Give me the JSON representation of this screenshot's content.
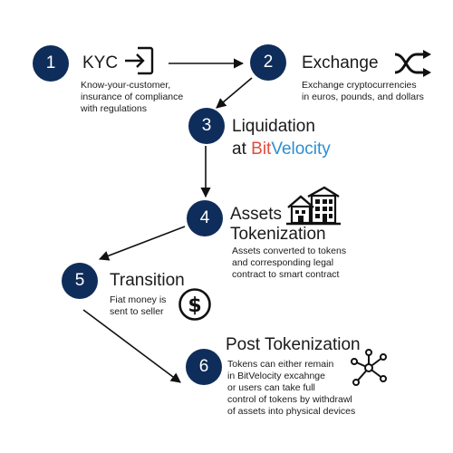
{
  "colors": {
    "circle_fill": "#0f2d5a",
    "brand_bit": "#e04c3c",
    "brand_velocity": "#2c8fd0"
  },
  "steps": [
    {
      "number": "1",
      "title": "KYC",
      "description_lines": [
        "Know-your-customer,",
        "insurance of compliance",
        "with regulations"
      ],
      "icon": "sign-in-icon"
    },
    {
      "number": "2",
      "title": "Exchange",
      "description_lines": [
        "Exchange cryptocurrencies",
        "in euros, pounds, and dollars"
      ],
      "icon": "shuffle-icon"
    },
    {
      "number": "3",
      "title": "Liquidation",
      "title_line2_prefix": "at",
      "brand_part1": "Bit",
      "brand_part2": "Velocity"
    },
    {
      "number": "4",
      "title_line1": "Assets",
      "title_line2": "Tokenization",
      "description_lines": [
        "Assets converted to tokens",
        "and corresponding legal",
        "contract to smart contract"
      ],
      "icon": "buildings-icon"
    },
    {
      "number": "5",
      "title": "Transition",
      "description_lines": [
        "Fiat money is",
        "sent to seller"
      ],
      "icon": "dollar-icon"
    },
    {
      "number": "6",
      "title": "Post Tokenization",
      "description_lines": [
        "Tokens can either remain",
        "in BitVelocity excahnge",
        "or users can take full",
        "control of tokens by withdrawl",
        "of assets into physical devices"
      ],
      "icon": "network-icon"
    }
  ]
}
